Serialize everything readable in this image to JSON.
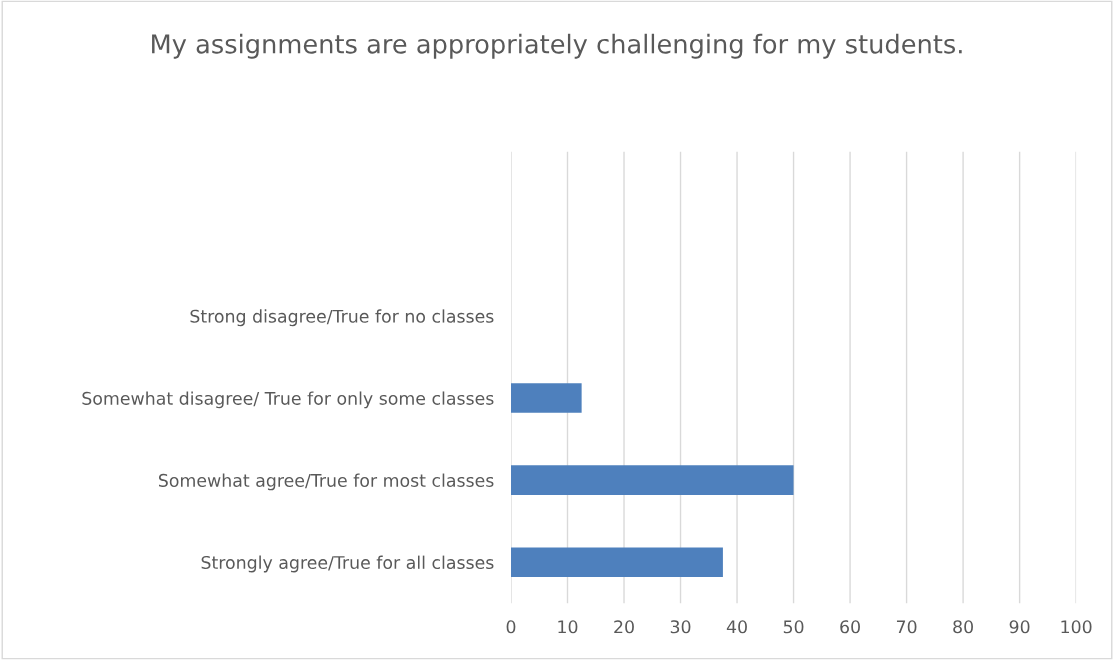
{
  "chart_data": {
    "type": "bar",
    "orientation": "horizontal",
    "title": "My assignments are appropriately challenging for my students.",
    "categories": [
      "Strong disagree/True for no classes",
      "Somewhat disagree/ True for only some classes",
      "Somewhat agree/True for most classes",
      "Strongly agree/True for all classes"
    ],
    "values": [
      0,
      12.5,
      50,
      37.5
    ],
    "color": "#4e80bd",
    "xlim": [
      0,
      100
    ],
    "xticks": [
      0,
      10,
      20,
      30,
      40,
      50,
      60,
      70,
      80,
      90,
      100
    ],
    "grid": "x",
    "legend": false
  }
}
